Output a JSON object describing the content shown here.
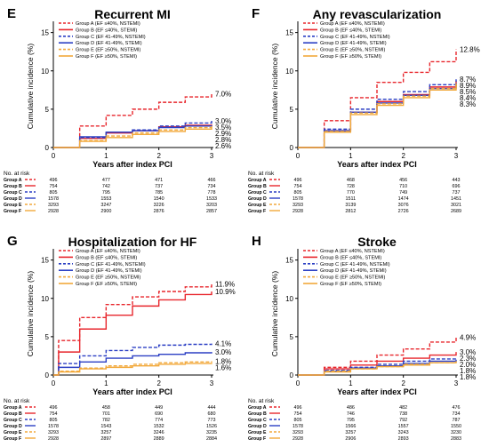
{
  "panels": [
    {
      "letter": "E",
      "title": "Recurrent MI",
      "ymax": 16,
      "yticks": [
        0,
        5,
        10,
        15
      ],
      "end_labels": [
        "7.0%",
        "3.5%",
        "3.0%",
        "2.9%",
        "2.8%",
        "2.6%"
      ]
    },
    {
      "letter": "F",
      "title": "Any revascularization",
      "ymax": 16,
      "yticks": [
        0,
        5,
        10,
        15
      ],
      "end_labels": [
        "12.8%",
        "8.9%",
        "8.7%",
        "8.4%",
        "8.5%",
        "8.3%"
      ]
    },
    {
      "letter": "G",
      "title": "Hospitalization for HF",
      "ymax": 16,
      "yticks": [
        0,
        5,
        10,
        15
      ],
      "end_labels": [
        "11.9%",
        "10.9%",
        "4.1%",
        "3.0%",
        "1.8%",
        "1.6%"
      ]
    },
    {
      "letter": "H",
      "title": "Stroke",
      "ymax": 16,
      "yticks": [
        0,
        5,
        10,
        15
      ],
      "end_labels": [
        "4.9%",
        "3.0%",
        "2.3%",
        "2.0%",
        "1.8%",
        "1.8%"
      ]
    }
  ],
  "common": {
    "ylabel": "Cumulative incidence (%)",
    "xlabel": "Years after index PCI",
    "xticks": [
      "0",
      "1",
      "2",
      "3"
    ],
    "no_at_risk": "No. at risk",
    "legend": [
      "Group A (EF ≤40%, NSTEMI)",
      "Group B (EF ≤40%, STEMI)",
      "Group C (EF 41-49%, NSTEMI)",
      "Group D (EF 41-49%, STEMI)",
      "Group E (EF ≥50%, NSTEMI)",
      "Group F (EF ≥50%, STEMI)"
    ],
    "group_labels": [
      "Group A",
      "Group B",
      "Group C",
      "Group D",
      "Group E",
      "Group F"
    ],
    "colors": [
      "#e8262c",
      "#e8262c",
      "#2b3fc4",
      "#2b3fc4",
      "#f2a93b",
      "#f2a93b"
    ],
    "dashed": [
      true,
      false,
      true,
      false,
      true,
      false
    ]
  },
  "chart_data": [
    {
      "type": "line",
      "title": "Recurrent MI",
      "xlabel": "Years after index PCI",
      "ylabel": "Cumulative incidence (%)",
      "xlim": [
        0,
        3
      ],
      "ylim": [
        0,
        16
      ],
      "series": [
        {
          "name": "Group A (EF ≤40%, NSTEMI)",
          "x": [
            0,
            0.5,
            1,
            1.5,
            2,
            2.5,
            3
          ],
          "y": [
            0,
            2.8,
            4.2,
            5.0,
            5.9,
            6.6,
            7.0
          ]
        },
        {
          "name": "Group B (EF ≤40%, STEMI)",
          "x": [
            0,
            0.5,
            1,
            1.5,
            2,
            2.5,
            3
          ],
          "y": [
            0,
            1.2,
            1.9,
            2.2,
            2.7,
            2.9,
            3.0
          ]
        },
        {
          "name": "Group C (EF 41-49%, NSTEMI)",
          "x": [
            0,
            0.5,
            1,
            1.5,
            2,
            2.5,
            3
          ],
          "y": [
            0,
            1.3,
            2.0,
            2.3,
            2.8,
            3.2,
            3.5
          ]
        },
        {
          "name": "Group D (EF 41-49%, STEMI)",
          "x": [
            0,
            0.5,
            1,
            1.5,
            2,
            2.5,
            3
          ],
          "y": [
            0,
            1.4,
            2.0,
            2.2,
            2.6,
            2.8,
            2.9
          ]
        },
        {
          "name": "Group E (EF ≥50%, NSTEMI)",
          "x": [
            0,
            0.5,
            1,
            1.5,
            2,
            2.5,
            3
          ],
          "y": [
            0,
            0.9,
            1.5,
            1.9,
            2.3,
            2.6,
            2.8
          ]
        },
        {
          "name": "Group F (EF ≥50%, STEMI)",
          "x": [
            0,
            0.5,
            1,
            1.5,
            2,
            2.5,
            3
          ],
          "y": [
            0,
            0.8,
            1.3,
            1.7,
            2.1,
            2.4,
            2.6
          ]
        }
      ],
      "at_risk": [
        [
          496,
          477,
          471,
          466
        ],
        [
          754,
          742,
          737,
          734
        ],
        [
          805,
          795,
          785,
          778
        ],
        [
          1578,
          1553,
          1540,
          1533
        ],
        [
          3293,
          3247,
          3226,
          3203
        ],
        [
          2928,
          2900,
          2876,
          2857
        ]
      ]
    },
    {
      "type": "line",
      "title": "Any revascularization",
      "xlabel": "Years after index PCI",
      "ylabel": "Cumulative incidence (%)",
      "xlim": [
        0,
        3
      ],
      "ylim": [
        0,
        16
      ],
      "series": [
        {
          "name": "Group A (EF ≤40%, NSTEMI)",
          "x": [
            0,
            0.5,
            1,
            1.5,
            2,
            2.5,
            3
          ],
          "y": [
            0,
            3.5,
            6.5,
            8.5,
            9.8,
            11.2,
            12.8
          ]
        },
        {
          "name": "Group B (EF ≤40%, STEMI)",
          "x": [
            0,
            0.5,
            1,
            1.5,
            2,
            2.5,
            3
          ],
          "y": [
            0,
            2.2,
            4.6,
            6.0,
            6.9,
            7.9,
            8.7
          ]
        },
        {
          "name": "Group C (EF 41-49%, NSTEMI)",
          "x": [
            0,
            0.5,
            1,
            1.5,
            2,
            2.5,
            3
          ],
          "y": [
            0,
            2.4,
            5.0,
            6.3,
            7.3,
            8.2,
            8.9
          ]
        },
        {
          "name": "Group D (EF 41-49%, STEMI)",
          "x": [
            0,
            0.5,
            1,
            1.5,
            2,
            2.5,
            3
          ],
          "y": [
            0,
            2.2,
            4.6,
            5.8,
            6.8,
            7.7,
            8.4
          ]
        },
        {
          "name": "Group E (EF ≥50%, NSTEMI)",
          "x": [
            0,
            0.5,
            1,
            1.5,
            2,
            2.5,
            3
          ],
          "y": [
            0,
            2.1,
            4.5,
            5.7,
            6.7,
            7.7,
            8.5
          ]
        },
        {
          "name": "Group F (EF ≥50%, STEMI)",
          "x": [
            0,
            0.5,
            1,
            1.5,
            2,
            2.5,
            3
          ],
          "y": [
            0,
            2.0,
            4.3,
            5.5,
            6.5,
            7.5,
            8.3
          ]
        }
      ],
      "at_risk": [
        [
          496,
          468,
          456,
          443
        ],
        [
          754,
          728,
          710,
          696
        ],
        [
          805,
          770,
          749,
          737
        ],
        [
          1578,
          1511,
          1474,
          1451
        ],
        [
          3293,
          3139,
          3076,
          3021
        ],
        [
          2928,
          2812,
          2726,
          2689
        ]
      ]
    },
    {
      "type": "line",
      "title": "Hospitalization for HF",
      "xlabel": "Years after index PCI",
      "ylabel": "Cumulative incidence (%)",
      "xlim": [
        0,
        3
      ],
      "ylim": [
        0,
        16
      ],
      "series": [
        {
          "name": "Group A (EF ≤40%, NSTEMI)",
          "x": [
            0,
            0.1,
            0.5,
            1,
            1.5,
            2,
            2.5,
            3
          ],
          "y": [
            0,
            4.5,
            7.5,
            9.2,
            10.2,
            10.9,
            11.5,
            11.9
          ]
        },
        {
          "name": "Group B (EF ≤40%, STEMI)",
          "x": [
            0,
            0.1,
            0.5,
            1,
            1.5,
            2,
            2.5,
            3
          ],
          "y": [
            0,
            3.0,
            6.0,
            7.8,
            9.0,
            9.8,
            10.5,
            10.9
          ]
        },
        {
          "name": "Group C (EF 41-49%, NSTEMI)",
          "x": [
            0,
            0.1,
            0.5,
            1,
            1.5,
            2,
            2.5,
            3
          ],
          "y": [
            0,
            1.5,
            2.5,
            3.2,
            3.6,
            3.9,
            4.0,
            4.1
          ]
        },
        {
          "name": "Group D (EF 41-49%, STEMI)",
          "x": [
            0,
            0.1,
            0.5,
            1,
            1.5,
            2,
            2.5,
            3
          ],
          "y": [
            0,
            1.0,
            1.7,
            2.2,
            2.5,
            2.7,
            2.9,
            3.0
          ]
        },
        {
          "name": "Group E (EF ≥50%, NSTEMI)",
          "x": [
            0,
            0.1,
            0.5,
            1,
            1.5,
            2,
            2.5,
            3
          ],
          "y": [
            0,
            0.5,
            0.9,
            1.2,
            1.4,
            1.6,
            1.7,
            1.8
          ]
        },
        {
          "name": "Group F (EF ≥50%, STEMI)",
          "x": [
            0,
            0.1,
            0.5,
            1,
            1.5,
            2,
            2.5,
            3
          ],
          "y": [
            0,
            0.4,
            0.8,
            1.0,
            1.2,
            1.4,
            1.5,
            1.6
          ]
        }
      ],
      "at_risk": [
        [
          496,
          458,
          449,
          444
        ],
        [
          754,
          701,
          690,
          680
        ],
        [
          805,
          782,
          774,
          773
        ],
        [
          1578,
          1543,
          1532,
          1526
        ],
        [
          3293,
          3257,
          3246,
          3235
        ],
        [
          2928,
          2897,
          2889,
          2884
        ]
      ]
    },
    {
      "type": "line",
      "title": "Stroke",
      "xlabel": "Years after index PCI",
      "ylabel": "Cumulative incidence (%)",
      "xlim": [
        0,
        3
      ],
      "ylim": [
        0,
        16
      ],
      "series": [
        {
          "name": "Group A (EF ≤40%, NSTEMI)",
          "x": [
            0,
            0.5,
            1,
            1.5,
            2,
            2.5,
            3
          ],
          "y": [
            0,
            1.0,
            1.8,
            2.6,
            3.4,
            4.3,
            4.9
          ]
        },
        {
          "name": "Group B (EF ≤40%, STEMI)",
          "x": [
            0,
            0.5,
            1,
            1.5,
            2,
            2.5,
            3
          ],
          "y": [
            0,
            0.8,
            1.3,
            1.8,
            2.2,
            2.6,
            3.0
          ]
        },
        {
          "name": "Group C (EF 41-49%, NSTEMI)",
          "x": [
            0,
            0.5,
            1,
            1.5,
            2,
            2.5,
            3
          ],
          "y": [
            0,
            0.6,
            1.0,
            1.4,
            1.8,
            2.1,
            2.3
          ]
        },
        {
          "name": "Group D (EF 41-49%, STEMI)",
          "x": [
            0,
            0.5,
            1,
            1.5,
            2,
            2.5,
            3
          ],
          "y": [
            0,
            0.5,
            0.9,
            1.2,
            1.5,
            1.8,
            2.0
          ]
        },
        {
          "name": "Group E (EF ≥50%, NSTEMI)",
          "x": [
            0,
            0.5,
            1,
            1.5,
            2,
            2.5,
            3
          ],
          "y": [
            0,
            0.5,
            0.8,
            1.1,
            1.4,
            1.6,
            1.8
          ]
        },
        {
          "name": "Group F (EF ≥50%, STEMI)",
          "x": [
            0,
            0.5,
            1,
            1.5,
            2,
            2.5,
            3
          ],
          "y": [
            0,
            0.4,
            0.8,
            1.1,
            1.3,
            1.6,
            1.8
          ]
        }
      ],
      "at_risk": [
        [
          496,
          486,
          482,
          476
        ],
        [
          754,
          746,
          738,
          734
        ],
        [
          805,
          795,
          792,
          787
        ],
        [
          1578,
          1566,
          1557,
          1550
        ],
        [
          3293,
          3257,
          3243,
          3230
        ],
        [
          2928,
          2906,
          2893,
          2883
        ]
      ]
    }
  ]
}
